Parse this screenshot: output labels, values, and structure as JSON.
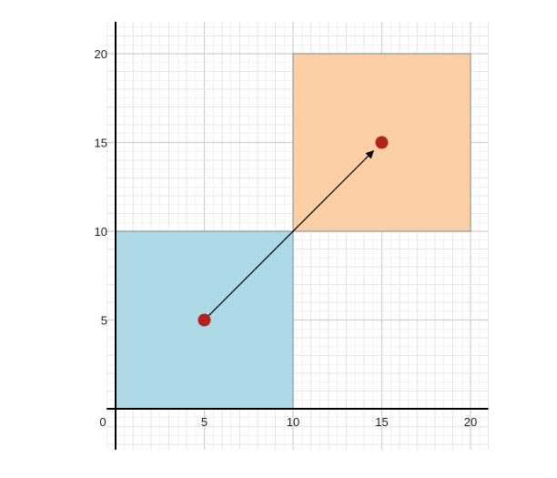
{
  "chart_data": {
    "type": "diagram",
    "xlim": [
      -0.5,
      21
    ],
    "ylim": [
      -2.3,
      21.8
    ],
    "grid": true,
    "minor_grid_step": 1,
    "major_grid_step": 5,
    "x_ticks": [
      {
        "value": 0,
        "label": "0"
      },
      {
        "value": 5,
        "label": "5"
      },
      {
        "value": 10,
        "label": "10"
      },
      {
        "value": 15,
        "label": "15"
      },
      {
        "value": 20,
        "label": "20"
      }
    ],
    "y_ticks": [
      {
        "value": 5,
        "label": "5"
      },
      {
        "value": 10,
        "label": "10"
      },
      {
        "value": 15,
        "label": "15"
      },
      {
        "value": 20,
        "label": "20"
      }
    ],
    "squares": [
      {
        "x0": 0,
        "y0": 0,
        "x1": 10,
        "y1": 10,
        "color": "#add8e6"
      },
      {
        "x0": 10,
        "y0": 10,
        "x1": 20,
        "y1": 20,
        "color": "#fcd0a6"
      }
    ],
    "points": [
      {
        "x": 5,
        "y": 5,
        "color": "#b22222"
      },
      {
        "x": 15,
        "y": 15,
        "color": "#b22222"
      }
    ],
    "arrow": {
      "from": [
        5,
        5
      ],
      "to": [
        15,
        15
      ],
      "color": "#000000"
    },
    "colors": {
      "axis": "#000000",
      "grid_minor": "#e6e6e6",
      "grid_major": "#cfcfcf",
      "square_edge": "#8a8a8a"
    }
  }
}
